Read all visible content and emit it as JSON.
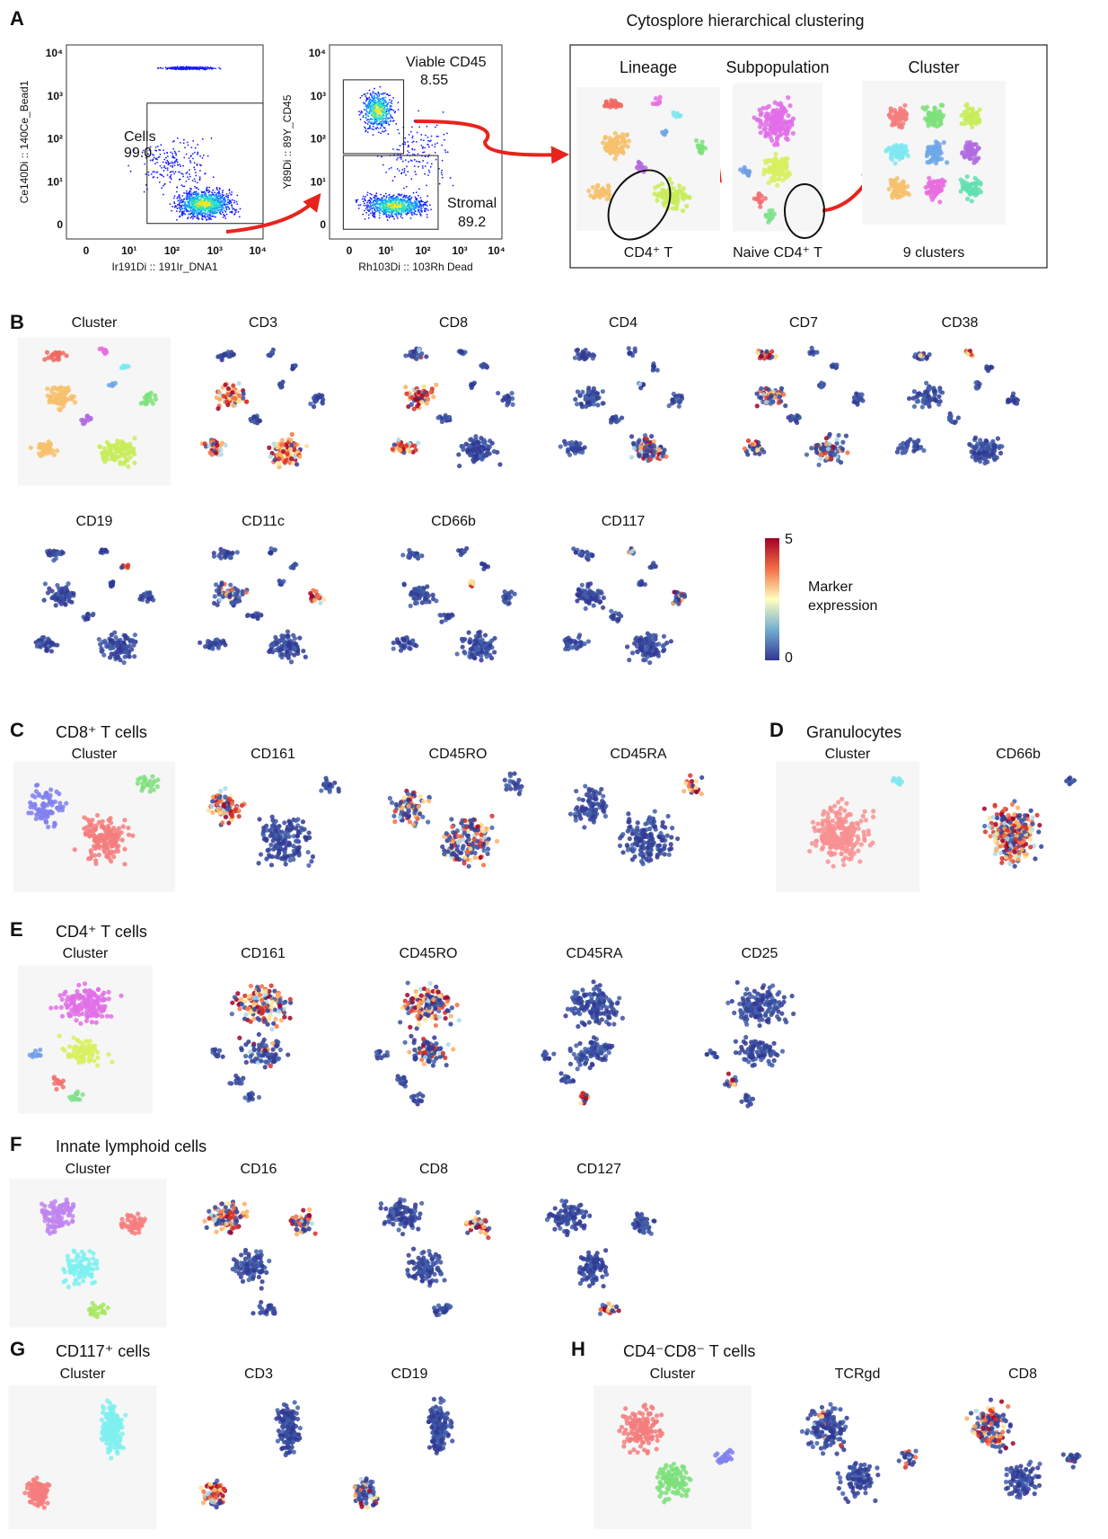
{
  "figure": {
    "panel_a": {
      "label": "A",
      "title": "Cytosplore hierarchical clustering",
      "plot1": {
        "y_label": "Ce140Di :: 140Ce_Bead1",
        "x_label": "Ir191Di :: 191Ir_DNA1",
        "y_ticks": [
          "0",
          "10¹",
          "10²",
          "10³",
          "10⁴"
        ],
        "x_ticks": [
          "0",
          "10¹",
          "10²",
          "10³",
          "10⁴"
        ],
        "gate": "Cells",
        "gate_value": "99.0"
      },
      "plot2": {
        "y_label": "Y89Di :: 89Y_CD45",
        "x_label": "Rh103Di :: 103Rh  Dead",
        "y_ticks": [
          "0",
          "10¹",
          "10²",
          "10³",
          "10⁴"
        ],
        "x_ticks": [
          "0",
          "10¹",
          "10²",
          "10³",
          "10⁴"
        ],
        "gates": [
          {
            "name": "Viable CD45",
            "value": "8.55"
          },
          {
            "name": "Stromal",
            "value": "89.2"
          }
        ]
      },
      "levels": [
        {
          "title": "Lineage",
          "caption": "CD4⁺ T"
        },
        {
          "title": "Subpopulation",
          "caption": "Naive CD4⁺ T"
        },
        {
          "title": "Cluster",
          "caption": "9 clusters"
        }
      ]
    },
    "panel_b": {
      "label": "B",
      "panels": [
        "Cluster",
        "CD3",
        "CD8",
        "CD4",
        "CD7",
        "CD38",
        "CD19",
        "CD11c",
        "CD66b",
        "CD117"
      ],
      "colorbar": {
        "max": "5",
        "min": "0",
        "label": "Marker expression"
      }
    },
    "panel_c": {
      "label": "C",
      "title": "CD8⁺ T cells",
      "panels": [
        "Cluster",
        "CD161",
        "CD45RO",
        "CD45RA"
      ]
    },
    "panel_d": {
      "label": "D",
      "title": "Granulocytes",
      "panels": [
        "Cluster",
        "CD66b"
      ]
    },
    "panel_e": {
      "label": "E",
      "title": "CD4⁺ T cells",
      "panels": [
        "Cluster",
        "CD161",
        "CD45RO",
        "CD45RA",
        "CD25"
      ]
    },
    "panel_f": {
      "label": "F",
      "title": "Innate lymphoid cells",
      "panels": [
        "Cluster",
        "CD16",
        "CD8",
        "CD127"
      ]
    },
    "panel_g": {
      "label": "G",
      "title": "CD117⁺ cells",
      "panels": [
        "Cluster",
        "CD3",
        "CD19"
      ]
    },
    "panel_h": {
      "label": "H",
      "title": "CD4⁻CD8⁻ T cells",
      "panels": [
        "Cluster",
        "TCRgd",
        "CD8"
      ]
    }
  }
}
